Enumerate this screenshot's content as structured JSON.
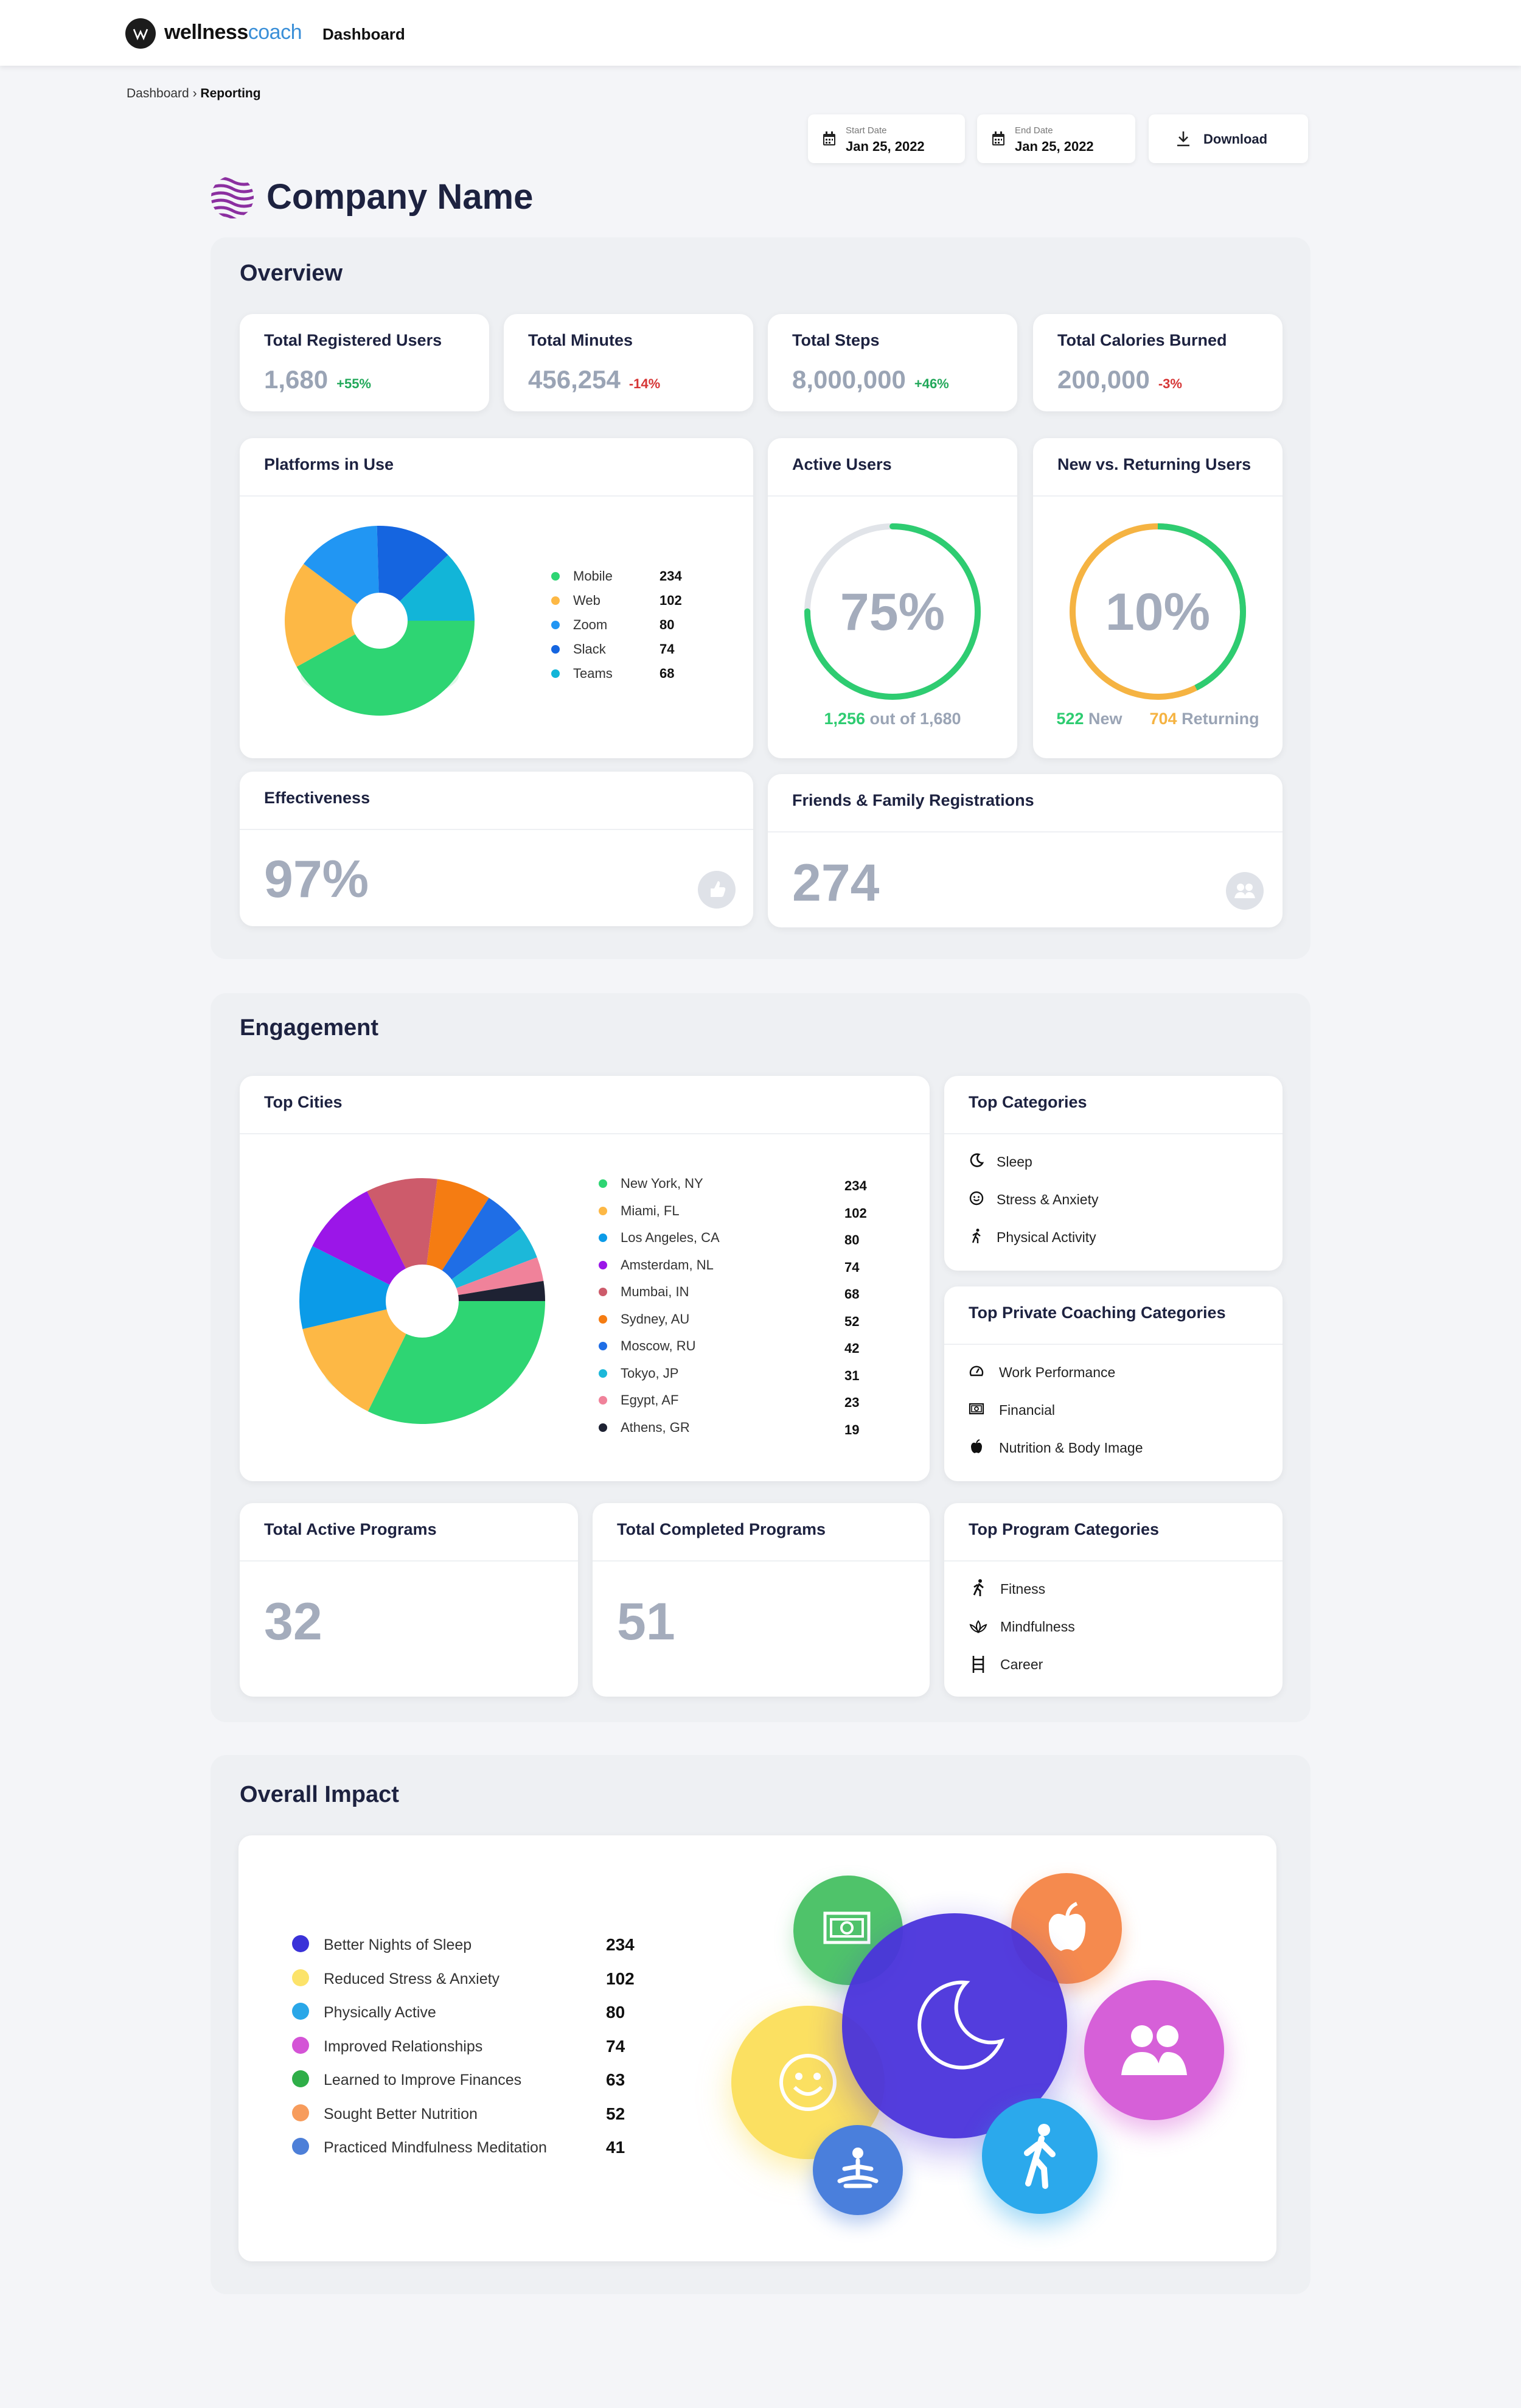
{
  "header": {
    "logo_bold": "wellness",
    "logo_light": "coach",
    "title": "Dashboard"
  },
  "breadcrumb": {
    "root": "Dashboard",
    "separator": "›",
    "current": "Reporting"
  },
  "dates": {
    "start_label": "Start Date",
    "start_value": "Jan 25, 2022",
    "end_label": "End Date",
    "end_value": "Jan 25, 2022",
    "download_label": "Download"
  },
  "company": {
    "name": "Company Name"
  },
  "overview": {
    "title": "Overview",
    "stats": [
      {
        "label": "Total Registered Users",
        "value": "1,680",
        "delta": "+55%",
        "delta_color": "#22a85a"
      },
      {
        "label": "Total Minutes",
        "value": "456,254",
        "delta": "-14%",
        "delta_color": "#d63535"
      },
      {
        "label": "Total Steps",
        "value": "8,000,000",
        "delta": "+46%",
        "delta_color": "#22a85a"
      },
      {
        "label": "Total Calories Burned",
        "value": "200,000",
        "delta": "-3%",
        "delta_color": "#d63535"
      }
    ],
    "platforms": {
      "title": "Platforms in Use",
      "items": [
        {
          "label": "Mobile",
          "value": 234,
          "color": "#2ed573"
        },
        {
          "label": "Web",
          "value": 102,
          "color": "#fdb845"
        },
        {
          "label": "Zoom",
          "value": 80,
          "color": "#2196f3"
        },
        {
          "label": "Slack",
          "value": 74,
          "color": "#1565e0"
        },
        {
          "label": "Teams",
          "value": 68,
          "color": "#12b5d8"
        }
      ]
    },
    "active_users": {
      "title": "Active Users",
      "percent_label": "75%",
      "percent": 0.75,
      "count": "1,256",
      "suffix": "out of 1,680",
      "color": "#2ecc71"
    },
    "new_returning": {
      "title": "New vs. Returning Users",
      "percent_label": "10%",
      "new_count": "522",
      "new_label": "New",
      "returning_count": "704",
      "returning_label": "Returning",
      "new_color": "#2ecc71",
      "returning_color": "#f5b342",
      "new_fraction": 0.426
    },
    "effectiveness": {
      "title": "Effectiveness",
      "value": "97%",
      "icon": "thumbs-up-icon"
    },
    "friends": {
      "title": "Friends & Family Registrations",
      "value": "274",
      "icon": "people-icon"
    }
  },
  "engagement": {
    "title": "Engagement",
    "top_cities": {
      "title": "Top Cities",
      "items": [
        {
          "label": "New York, NY",
          "value": 234,
          "color": "#2ed573"
        },
        {
          "label": "Miami, FL",
          "value": 102,
          "color": "#fdb845"
        },
        {
          "label": "Los Angeles, CA",
          "value": 80,
          "color": "#0b9be8"
        },
        {
          "label": "Amsterdam, NL",
          "value": 74,
          "color": "#9b16e8"
        },
        {
          "label": "Mumbai, IN",
          "value": 68,
          "color": "#cd5b6b"
        },
        {
          "label": "Sydney, AU",
          "value": 52,
          "color": "#f57c12"
        },
        {
          "label": "Moscow, RU",
          "value": 42,
          "color": "#1f6ee6"
        },
        {
          "label": "Tokyo, JP",
          "value": 31,
          "color": "#1cb8d9"
        },
        {
          "label": "Egypt, AF",
          "value": 23,
          "color": "#f0829a"
        },
        {
          "label": "Athens, GR",
          "value": 19,
          "color": "#1e2233"
        }
      ]
    },
    "top_categories": {
      "title": "Top Categories",
      "items": [
        {
          "label": "Sleep",
          "icon": "moon-icon"
        },
        {
          "label": "Stress & Anxiety",
          "icon": "smile-icon"
        },
        {
          "label": "Physical Activity",
          "icon": "running-icon"
        }
      ]
    },
    "private_coaching": {
      "title": "Top Private Coaching Categories",
      "items": [
        {
          "label": "Work Performance",
          "icon": "gauge-icon"
        },
        {
          "label": "Financial",
          "icon": "money-icon"
        },
        {
          "label": "Nutrition & Body Image",
          "icon": "apple-icon"
        }
      ]
    },
    "active_programs": {
      "title": "Total Active Programs",
      "value": "32"
    },
    "completed_programs": {
      "title": "Total Completed Programs",
      "value": "51"
    },
    "program_categories": {
      "title": "Top Program Categories",
      "items": [
        {
          "label": "Fitness",
          "icon": "runner-icon"
        },
        {
          "label": "Mindfulness",
          "icon": "lotus-icon"
        },
        {
          "label": "Career",
          "icon": "ladder-icon"
        }
      ]
    }
  },
  "impact": {
    "title": "Overall Impact",
    "items": [
      {
        "label": "Better Nights of Sleep",
        "value": 234,
        "color": "#3a32d8"
      },
      {
        "label": "Reduced Stress & Anxiety",
        "value": 102,
        "color": "#fce36a"
      },
      {
        "label": "Physically Active",
        "value": 80,
        "color": "#2aa7e8"
      },
      {
        "label": "Improved Relationships",
        "value": 74,
        "color": "#d454d6"
      },
      {
        "label": "Learned to Improve Finances",
        "value": 63,
        "color": "#2fae48"
      },
      {
        "label": "Sought Better Nutrition",
        "value": 52,
        "color": "#f79c5c"
      },
      {
        "label": "Practiced Mindfulness Meditation",
        "value": 41,
        "color": "#4d7fd8"
      }
    ]
  }
}
